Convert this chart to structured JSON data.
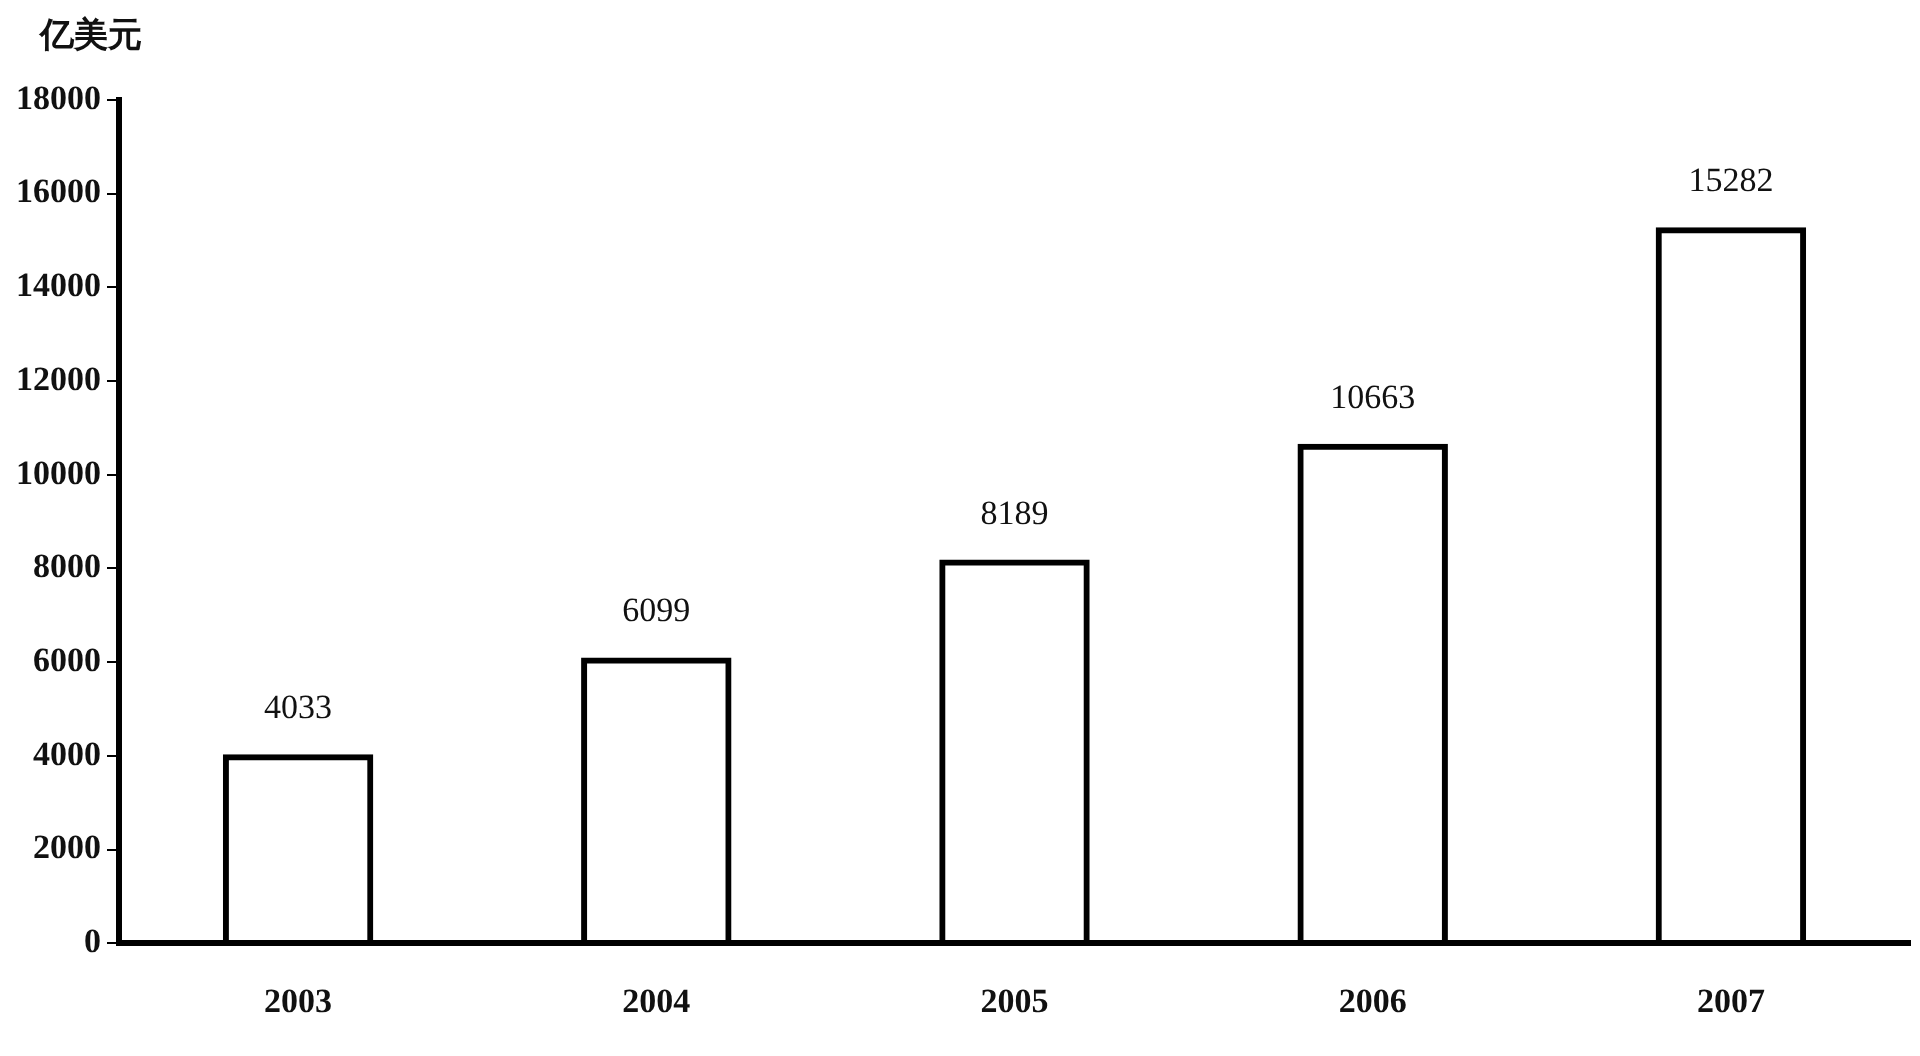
{
  "chart_data": {
    "type": "bar",
    "ylabel": "亿美元",
    "categories": [
      "2003",
      "2004",
      "2005",
      "2006",
      "2007"
    ],
    "values": [
      4033,
      6099,
      8189,
      10663,
      15282
    ],
    "color": "#000000",
    "ylim": [
      0,
      18000
    ],
    "yticks": [
      0,
      2000,
      4000,
      6000,
      8000,
      10000,
      12000,
      14000,
      16000,
      18000
    ],
    "grid": false,
    "legend": false,
    "data_labels": true
  }
}
